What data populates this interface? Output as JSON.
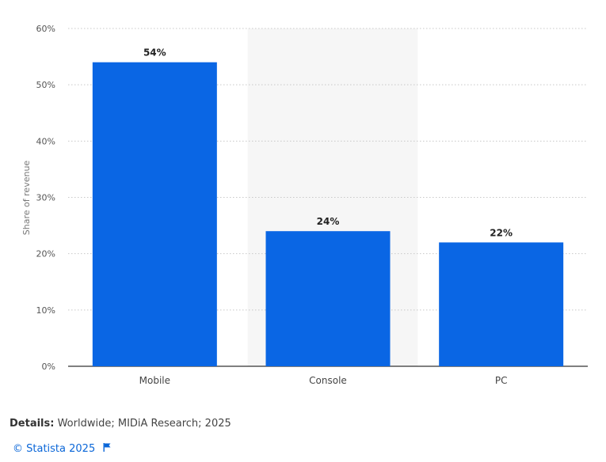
{
  "chart_data": {
    "type": "bar",
    "categories": [
      "Mobile",
      "Console",
      "PC"
    ],
    "values": [
      54,
      24,
      22
    ],
    "value_labels": [
      "54%",
      "24%",
      "22%"
    ],
    "ylabel": "Share of revenue",
    "ylim": [
      0,
      60
    ],
    "yticks": [
      0,
      10,
      20,
      30,
      40,
      50,
      60
    ],
    "ytick_labels": [
      "0%",
      "10%",
      "20%",
      "30%",
      "40%",
      "50%",
      "60%"
    ],
    "grid": true,
    "bar_color": "#0a66e4",
    "highlight_band_category": "Console",
    "highlight_band_color": "#f6f6f6"
  },
  "details": {
    "label": "Details:",
    "text": " Worldwide; MIDiA Research; 2025"
  },
  "credit": {
    "text": "© Statista 2025",
    "icon": "flag-icon"
  }
}
